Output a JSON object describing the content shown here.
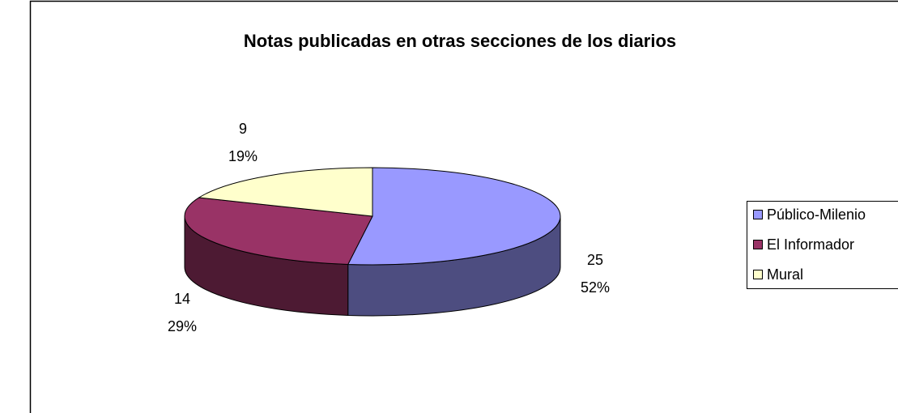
{
  "chart_data": {
    "type": "pie",
    "title": "Notas publicadas en otras secciones de los diarios",
    "categories": [
      "Público-Milenio",
      "El Informador",
      "Mural"
    ],
    "values": [
      25,
      14,
      9
    ],
    "percent_labels": [
      "52%",
      "29%",
      "19%"
    ],
    "colors": [
      "#9999ff",
      "#993366",
      "#ffffcc"
    ],
    "side_colors": [
      "#4d4d80",
      "#4d1a33",
      "#80806a"
    ],
    "legend": "right",
    "three_d": true
  }
}
